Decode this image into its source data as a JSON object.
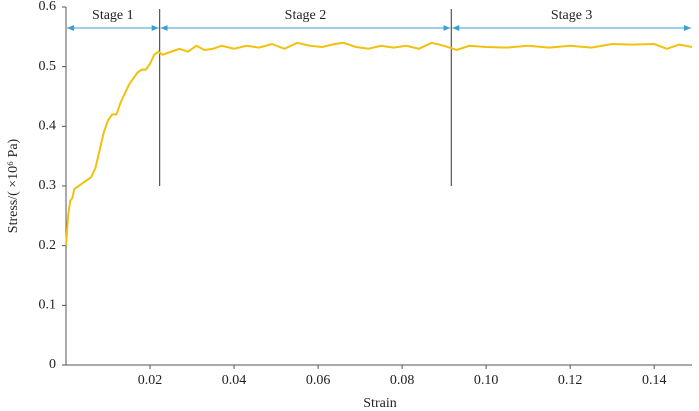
{
  "chart_data": {
    "type": "line",
    "xlabel": "Strain",
    "ylabel": "Stress/( ×10⁶ Pa)",
    "xlim": [
      0,
      0.149
    ],
    "ylim": [
      0,
      0.6
    ],
    "xticks": [
      0.02,
      0.04,
      0.06,
      0.08,
      {
        "value": 0.1,
        "label": "0.10"
      },
      0.12,
      0.14
    ],
    "yticks": [
      0,
      0.1,
      0.2,
      0.3,
      0.4,
      0.5,
      0.6
    ],
    "stages": [
      "Stage 1",
      "Stage 2",
      "Stage 3"
    ],
    "stage_boundaries": [
      0.0223,
      0.0917
    ],
    "series": [
      {
        "color": "#f2c10f",
        "x": [
          0,
          0.0005,
          0.001,
          0.0015,
          0.002,
          0.003,
          0.004,
          0.005,
          0.006,
          0.007,
          0.008,
          0.009,
          0.01,
          0.011,
          0.012,
          0.013,
          0.014,
          0.015,
          0.016,
          0.017,
          0.018,
          0.019,
          0.02,
          0.021,
          0.022,
          0.023,
          0.025,
          0.027,
          0.029,
          0.031,
          0.033,
          0.035,
          0.037,
          0.04,
          0.043,
          0.046,
          0.049,
          0.052,
          0.055,
          0.058,
          0.061,
          0.064,
          0.066,
          0.069,
          0.072,
          0.075,
          0.078,
          0.081,
          0.084,
          0.087,
          0.09,
          0.093,
          0.096,
          0.1,
          0.105,
          0.11,
          0.115,
          0.12,
          0.125,
          0.13,
          0.135,
          0.14,
          0.143,
          0.146,
          0.149
        ],
        "values": [
          0.2,
          0.25,
          0.275,
          0.28,
          0.295,
          0.3,
          0.305,
          0.31,
          0.315,
          0.33,
          0.36,
          0.39,
          0.41,
          0.42,
          0.42,
          0.44,
          0.455,
          0.47,
          0.48,
          0.49,
          0.495,
          0.495,
          0.505,
          0.52,
          0.525,
          0.52,
          0.525,
          0.53,
          0.525,
          0.535,
          0.528,
          0.53,
          0.535,
          0.53,
          0.535,
          0.532,
          0.538,
          0.53,
          0.54,
          0.535,
          0.533,
          0.538,
          0.54,
          0.533,
          0.53,
          0.535,
          0.532,
          0.535,
          0.53,
          0.54,
          0.535,
          0.528,
          0.535,
          0.533,
          0.532,
          0.535,
          0.532,
          0.535,
          0.532,
          0.538,
          0.537,
          0.538,
          0.53,
          0.537,
          0.533
        ]
      }
    ]
  }
}
